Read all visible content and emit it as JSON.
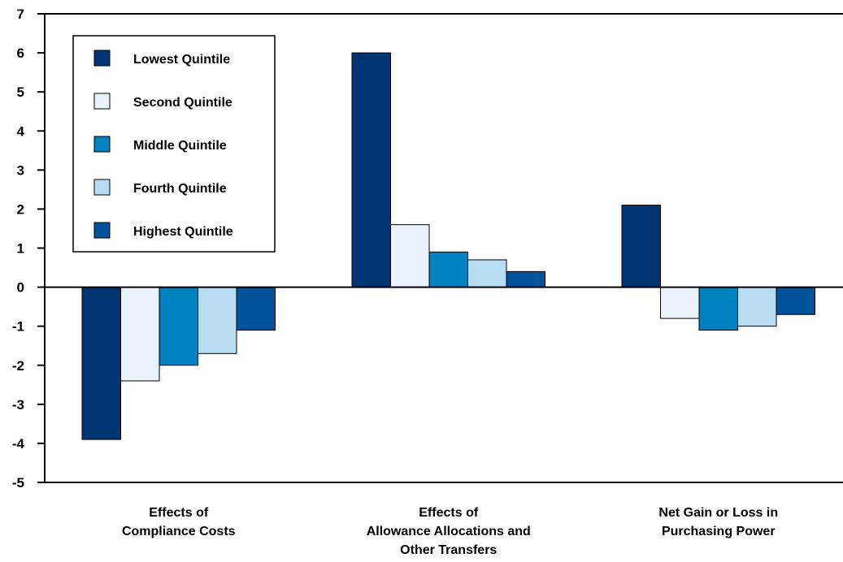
{
  "chart_data": {
    "type": "bar",
    "title": "",
    "xlabel": "",
    "ylabel": "",
    "ylim": [
      -5,
      7
    ],
    "yticks": [
      7,
      6,
      5,
      4,
      3,
      2,
      1,
      0,
      -1,
      -2,
      -3,
      -4,
      -5
    ],
    "grid": false,
    "legend_position": "top-left",
    "categories": [
      [
        "Effects of",
        "Compliance Costs"
      ],
      [
        "Effects of",
        "Allowance Allocations and",
        "Other Transfers"
      ],
      [
        "Net Gain or Loss in",
        "Purchasing Power"
      ]
    ],
    "series": [
      {
        "name": "Lowest Quintile",
        "color": "#003674",
        "values": [
          -3.9,
          6.0,
          2.1
        ]
      },
      {
        "name": "Second Quintile",
        "color": "#eaf3fb",
        "values": [
          -2.4,
          1.6,
          -0.8
        ]
      },
      {
        "name": "Middle Quintile",
        "color": "#0082c0",
        "values": [
          -2.0,
          0.9,
          -1.1
        ]
      },
      {
        "name": "Fourth Quintile",
        "color": "#b8dcf2",
        "values": [
          -1.7,
          0.7,
          -1.0
        ]
      },
      {
        "name": "Highest Quintile",
        "color": "#00529b",
        "values": [
          -1.1,
          0.4,
          -0.7
        ]
      }
    ]
  }
}
